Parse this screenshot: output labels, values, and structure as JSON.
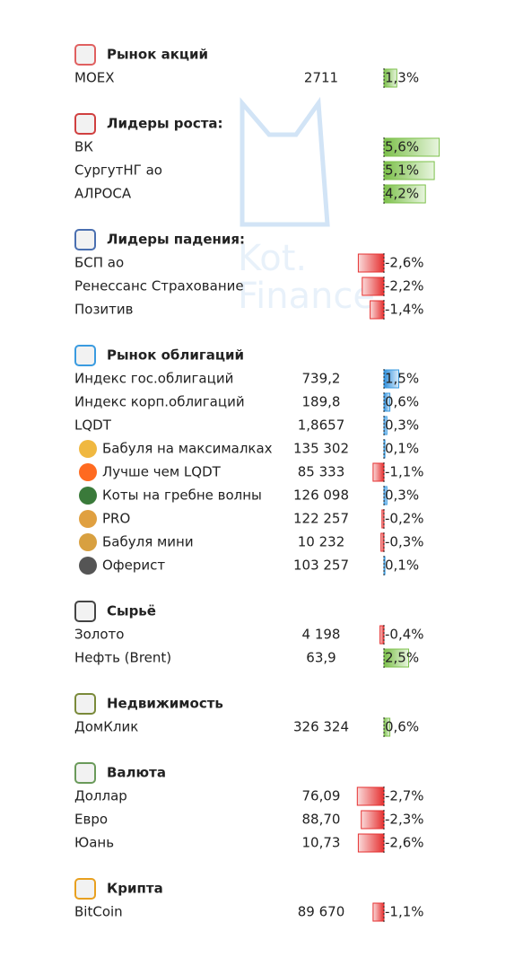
{
  "watermark": [
    "Kot.",
    "Finance"
  ],
  "sections": [
    {
      "title": "Рынок акций",
      "rows": [
        {
          "name": "MOEX",
          "price": "2711",
          "change": 1.3,
          "change_label": "1,3%"
        }
      ]
    },
    {
      "title": "Лидеры роста:",
      "rows": [
        {
          "name": "ВК",
          "change": 5.6,
          "change_label": "5,6%"
        },
        {
          "name": "СургутНГ ао",
          "change": 5.1,
          "change_label": "5,1%"
        },
        {
          "name": "АЛРОСА",
          "change": 4.2,
          "change_label": "4,2%"
        }
      ]
    },
    {
      "title": "Лидеры падения:",
      "rows": [
        {
          "name": "БСП ао",
          "change": -2.6,
          "change_label": "-2,6%"
        },
        {
          "name": "Ренессанс Страхование",
          "change": -2.2,
          "change_label": "-2,2%"
        },
        {
          "name": "Позитив",
          "change": -1.4,
          "change_label": "-1,4%"
        }
      ]
    },
    {
      "title": "Рынок облигаций",
      "bar_color": "#3a9be0",
      "rows": [
        {
          "name": "Индекс гос.облигаций",
          "price": "739,2",
          "change": 1.5,
          "change_label": "1,5%"
        },
        {
          "name": "Индекс корп.облигаций",
          "price": "189,8",
          "change": 0.6,
          "change_label": "0,6%"
        },
        {
          "name": "LQDT",
          "price": "1,8657",
          "change": 0.3,
          "change_label": "0,3%"
        },
        {
          "name": "Бабуля на максималках",
          "price": "135 302",
          "change": 0.1,
          "change_label": "0,1%"
        },
        {
          "name": "Лучше чем LQDT",
          "price": "85 333",
          "change": -1.1,
          "change_label": "-1,1%"
        },
        {
          "name": "Коты на гребне волны",
          "price": "126 098",
          "change": 0.3,
          "change_label": "0,3%"
        },
        {
          "name": "PRO",
          "price": "122 257",
          "change": -0.2,
          "change_label": "-0,2%"
        },
        {
          "name": "Бабуля мини",
          "price": "10 232",
          "change": -0.3,
          "change_label": "-0,3%"
        },
        {
          "name": "Оферист",
          "price": "103 257",
          "change": 0.1,
          "change_label": "0,1%"
        }
      ]
    },
    {
      "title": "Сырьё",
      "rows": [
        {
          "name": "Золото",
          "price": "4 198",
          "change": -0.4,
          "change_label": "-0,4%"
        },
        {
          "name": "Нефть (Brent)",
          "price": "63,9",
          "change": 2.5,
          "change_label": "2,5%"
        }
      ]
    },
    {
      "title": "Недвижимость",
      "rows": [
        {
          "name": "ДомКлик",
          "price": "326 324",
          "change": 0.6,
          "change_label": "0,6%"
        }
      ]
    },
    {
      "title": "Валюта",
      "rows": [
        {
          "name": "Доллар",
          "price": "76,09",
          "change": -2.7,
          "change_label": "-2,7%"
        },
        {
          "name": "Евро",
          "price": "88,70",
          "change": -2.3,
          "change_label": "-2,3%"
        },
        {
          "name": "Юань",
          "price": "10,73",
          "change": -2.6,
          "change_label": "-2,6%"
        }
      ]
    },
    {
      "title": "Крипта",
      "rows": [
        {
          "name": "BitCoin",
          "price": "89 670",
          "change": -1.1,
          "change_label": "-1,1%"
        }
      ]
    }
  ]
}
